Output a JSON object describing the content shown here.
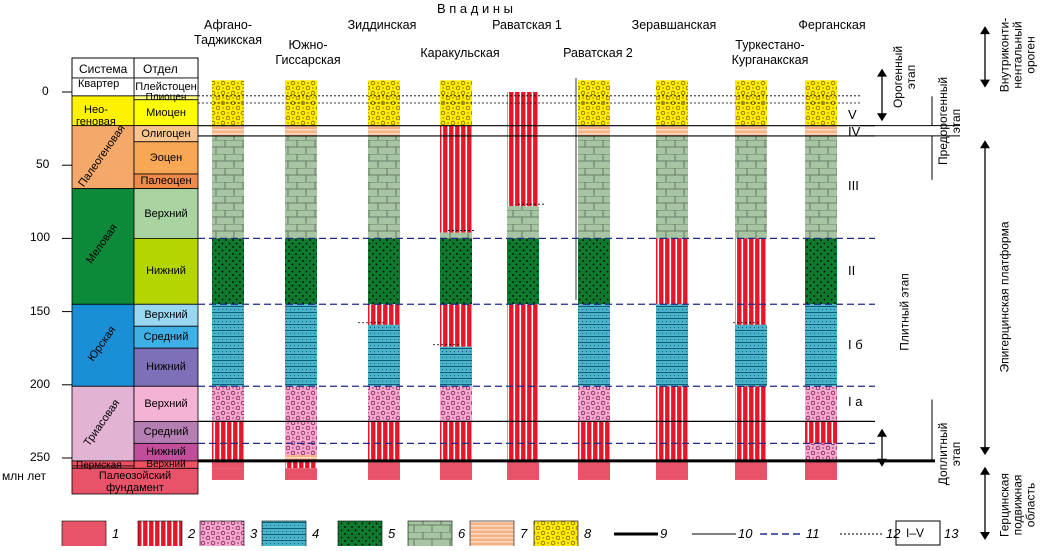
{
  "top_title": "В п а д и н ы",
  "stratigraphy_header": {
    "system": "Система",
    "section": "Отдел"
  },
  "axis": {
    "unit": "млн лет",
    "ticks": [
      "0",
      "50",
      "100",
      "150",
      "200",
      "250"
    ]
  },
  "systems": [
    {
      "name": "Квартер"
    },
    {
      "name": "Нео-\nгеновая"
    },
    {
      "name": "Палеогеновая"
    },
    {
      "name": "Меловая"
    },
    {
      "name": "Юрская"
    },
    {
      "name": "Триасовая"
    },
    {
      "name": "Пермская"
    },
    {
      "name": "Палеозойский\nфундамент"
    }
  ],
  "sections": [
    "Плейстоцен",
    "Плиоцен",
    "Миоцен",
    "Олигоцен",
    "Эоцен",
    "Палеоцен",
    "Верхний",
    "Нижний",
    "Верхний",
    "Средний",
    "Нижний",
    "Верхний",
    "Средний",
    "Нижний",
    "Верхний"
  ],
  "basins": [
    {
      "name": "Афгано-\nТаджикская"
    },
    {
      "name": "Южно-\nГиссарская"
    },
    {
      "name": "Зиддинская"
    },
    {
      "name": "Каракульская"
    },
    {
      "name": "Раватская 1"
    },
    {
      "name": "Раватская 2"
    },
    {
      "name": "Зеравшанская"
    },
    {
      "name": "Туркестано-\nКурганакская"
    },
    {
      "name": "Ферганская"
    }
  ],
  "complex_labels": [
    "V",
    "IV",
    "III",
    "II",
    "I б",
    "I а"
  ],
  "stages_inner": [
    "Орогенный\nэтап",
    "Предорогенный\nэтап",
    "Плитный этап",
    "Доплитный\nэтап"
  ],
  "stages_outer": [
    "Внутриконти-\nнентальный\nороген",
    "Эпигерцинская платформа",
    "Герцинская\nподвижная\nобласть"
  ],
  "legend": [
    {
      "num": "1"
    },
    {
      "num": "2"
    },
    {
      "num": "3"
    },
    {
      "num": "4"
    },
    {
      "num": "5"
    },
    {
      "num": "6"
    },
    {
      "num": "7"
    },
    {
      "num": "8"
    },
    {
      "num": "9"
    },
    {
      "num": "10"
    },
    {
      "num": "11"
    },
    {
      "num": "12"
    },
    {
      "num": "13",
      "box_text": "I–V"
    }
  ]
}
